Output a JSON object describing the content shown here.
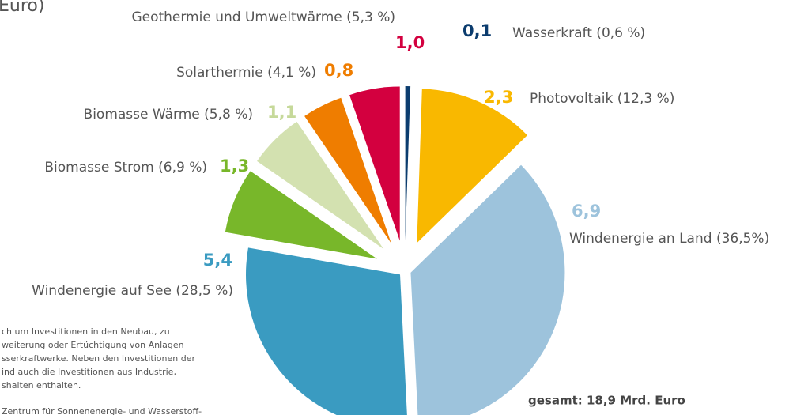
{
  "chart_data": {
    "type": "pie",
    "title": "Euro)",
    "categories": [
      "Wasserkraft (0,6 %)",
      "Photovoltaik (12,3 %)",
      "Windenergie an Land (36,5%)",
      "Windenergie auf See (28,5 %)",
      "Biomasse Strom (6,9 %)",
      "Biomasse Wärme (5,8 %)",
      "Solarthermie (4,1 %)",
      "Geothermie und Umweltwärme (5,3 %)"
    ],
    "values": [
      0.1,
      2.3,
      6.9,
      5.4,
      1.3,
      1.1,
      0.8,
      1.0
    ],
    "value_labels": [
      "0,1",
      "2,3",
      "6,9",
      "5,4",
      "1,3",
      "1,1",
      "0,8",
      "1,0"
    ],
    "colors": [
      "#0b3c6e",
      "#f9b800",
      "#9dc3dc",
      "#3a9bc1",
      "#78b72a",
      "#d3e1b0",
      "#ef7d00",
      "#d3003f"
    ],
    "value_label_colors": [
      "#0b3c6e",
      "#f9b800",
      "#9dc3dc",
      "#3a9bc1",
      "#78b72a",
      "#c6d99a",
      "#ef7d00",
      "#d3003f"
    ],
    "total_label": "gesamt: 18,9 Mrd. Euro",
    "footnote": [
      "ch um Investitionen in den Neubau, zu",
      "weiterung oder Ertüchtigung von Anlagen",
      "sserkraftwerke. Neben den Investitionen der",
      "ind auch die Investitionen aus Industrie,",
      "shalten enthalten.",
      "Zentrum für Sonnenenergie- und Wasserstoff-"
    ]
  }
}
